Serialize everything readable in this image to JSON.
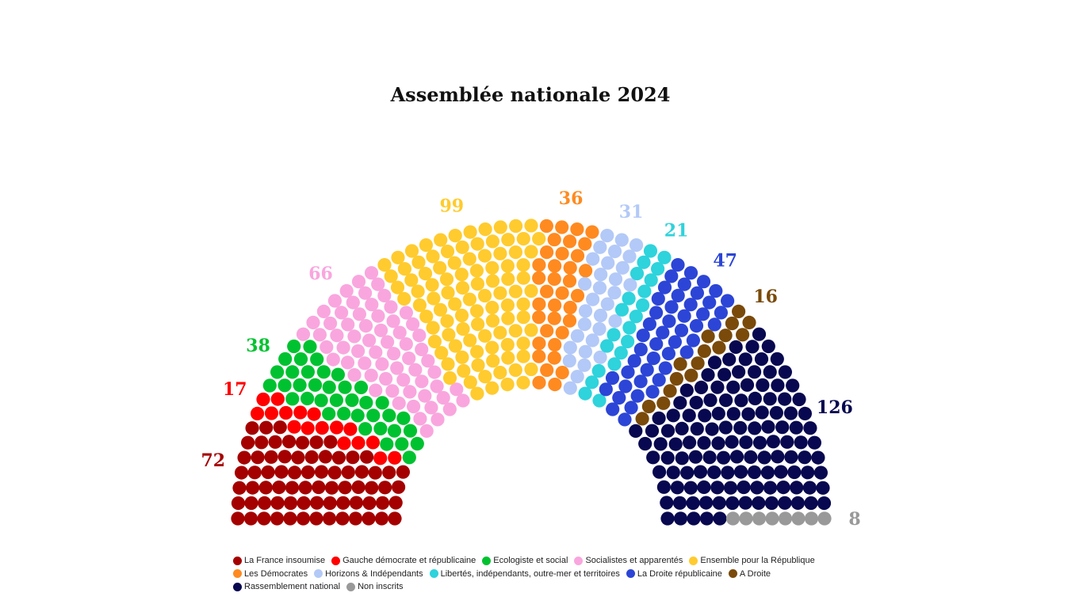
{
  "chart_data": {
    "type": "parliament",
    "title": "Assemblée nationale 2024",
    "total_seats": 577,
    "parties": [
      {
        "name": "La France insoumise",
        "seats": 72,
        "color": "#A50000"
      },
      {
        "name": "Gauche démocrate et républicaine",
        "seats": 17,
        "color": "#FF0000"
      },
      {
        "name": "Ecologiste et social",
        "seats": 38,
        "color": "#00C230"
      },
      {
        "name": "Socialistes et apparentés",
        "seats": 66,
        "color": "#F9A6DE"
      },
      {
        "name": "Ensemble pour la République",
        "seats": 99,
        "color": "#FFCB2E"
      },
      {
        "name": "Les Démocrates",
        "seats": 36,
        "color": "#FF8A20"
      },
      {
        "name": "Horizons & Indépendants",
        "seats": 31,
        "color": "#B3C9F7"
      },
      {
        "name": "Libertés, indépendants, outre-mer et territoires",
        "seats": 21,
        "color": "#2ED3DC"
      },
      {
        "name": "La Droite républicaine",
        "seats": 47,
        "color": "#2C45D6"
      },
      {
        "name": "A Droite",
        "seats": 16,
        "color": "#7A4A0A"
      },
      {
        "name": "Rassemblement national",
        "seats": 126,
        "color": "#07084F"
      },
      {
        "name": "Non inscrits",
        "seats": 8,
        "color": "#999999"
      }
    ],
    "legend_placement": "bottom",
    "grid": false
  }
}
